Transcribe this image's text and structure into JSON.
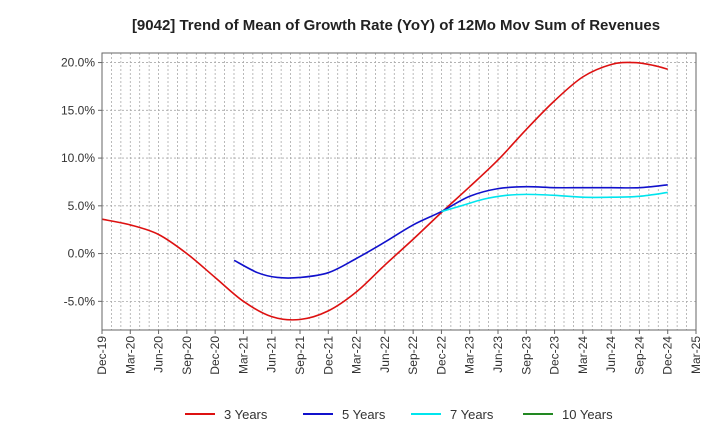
{
  "chart_data": {
    "type": "line",
    "title": "[9042]  Trend of Mean of Growth Rate (YoY) of 12Mo Mov Sum of Revenues",
    "xlabel": "",
    "ylabel": "",
    "x_ticks": [
      "Dec-19",
      "Mar-20",
      "Jun-20",
      "Sep-20",
      "Dec-20",
      "Mar-21",
      "Jun-21",
      "Sep-21",
      "Dec-21",
      "Mar-22",
      "Jun-22",
      "Sep-22",
      "Dec-22",
      "Mar-23",
      "Jun-23",
      "Sep-23",
      "Dec-23",
      "Mar-24",
      "Jun-24",
      "Sep-24",
      "Dec-24",
      "Mar-25"
    ],
    "y_ticks": [
      -5,
      0,
      5,
      10,
      15,
      20
    ],
    "y_tick_labels": [
      "-5.0%",
      "0.0%",
      "5.0%",
      "10.0%",
      "15.0%",
      "20.0%"
    ],
    "ylim": [
      -8,
      21
    ],
    "grid": true,
    "legend_position": "bottom",
    "series": [
      {
        "name": "3 Years",
        "color": "#dd1111",
        "points": [
          [
            0,
            3.6
          ],
          [
            1,
            3.0
          ],
          [
            2,
            2.0
          ],
          [
            3,
            0.0
          ],
          [
            4,
            -2.5
          ],
          [
            5,
            -5.0
          ],
          [
            6,
            -6.6
          ],
          [
            7,
            -6.9
          ],
          [
            8,
            -6.0
          ],
          [
            9,
            -4.0
          ],
          [
            10,
            -1.2
          ],
          [
            11,
            1.5
          ],
          [
            12,
            4.3
          ],
          [
            13,
            7.0
          ],
          [
            14,
            9.8
          ],
          [
            15,
            13.0
          ],
          [
            16,
            16.0
          ],
          [
            17,
            18.5
          ],
          [
            18,
            19.8
          ],
          [
            18.8,
            20.0
          ],
          [
            19.5,
            19.7
          ],
          [
            20,
            19.3
          ]
        ]
      },
      {
        "name": "5 Years",
        "color": "#1111cc",
        "points": [
          [
            4.67,
            -0.7
          ],
          [
            5.5,
            -2.0
          ],
          [
            6.2,
            -2.5
          ],
          [
            7,
            -2.5
          ],
          [
            8,
            -2.0
          ],
          [
            9,
            -0.5
          ],
          [
            10,
            1.2
          ],
          [
            11,
            3.0
          ],
          [
            12,
            4.4
          ],
          [
            13,
            6.0
          ],
          [
            14,
            6.8
          ],
          [
            15,
            7.0
          ],
          [
            16,
            6.9
          ],
          [
            17,
            6.9
          ],
          [
            18,
            6.9
          ],
          [
            19,
            6.9
          ],
          [
            20,
            7.2
          ]
        ]
      },
      {
        "name": "7 Years",
        "color": "#00e5ee",
        "points": [
          [
            12,
            4.4
          ],
          [
            12.7,
            5.0
          ],
          [
            13.5,
            5.7
          ],
          [
            14.3,
            6.1
          ],
          [
            15,
            6.2
          ],
          [
            16,
            6.1
          ],
          [
            17,
            5.9
          ],
          [
            18,
            5.9
          ],
          [
            19,
            6.0
          ],
          [
            20,
            6.4
          ]
        ]
      },
      {
        "name": "10 Years",
        "color": "#228822",
        "points": []
      }
    ]
  }
}
